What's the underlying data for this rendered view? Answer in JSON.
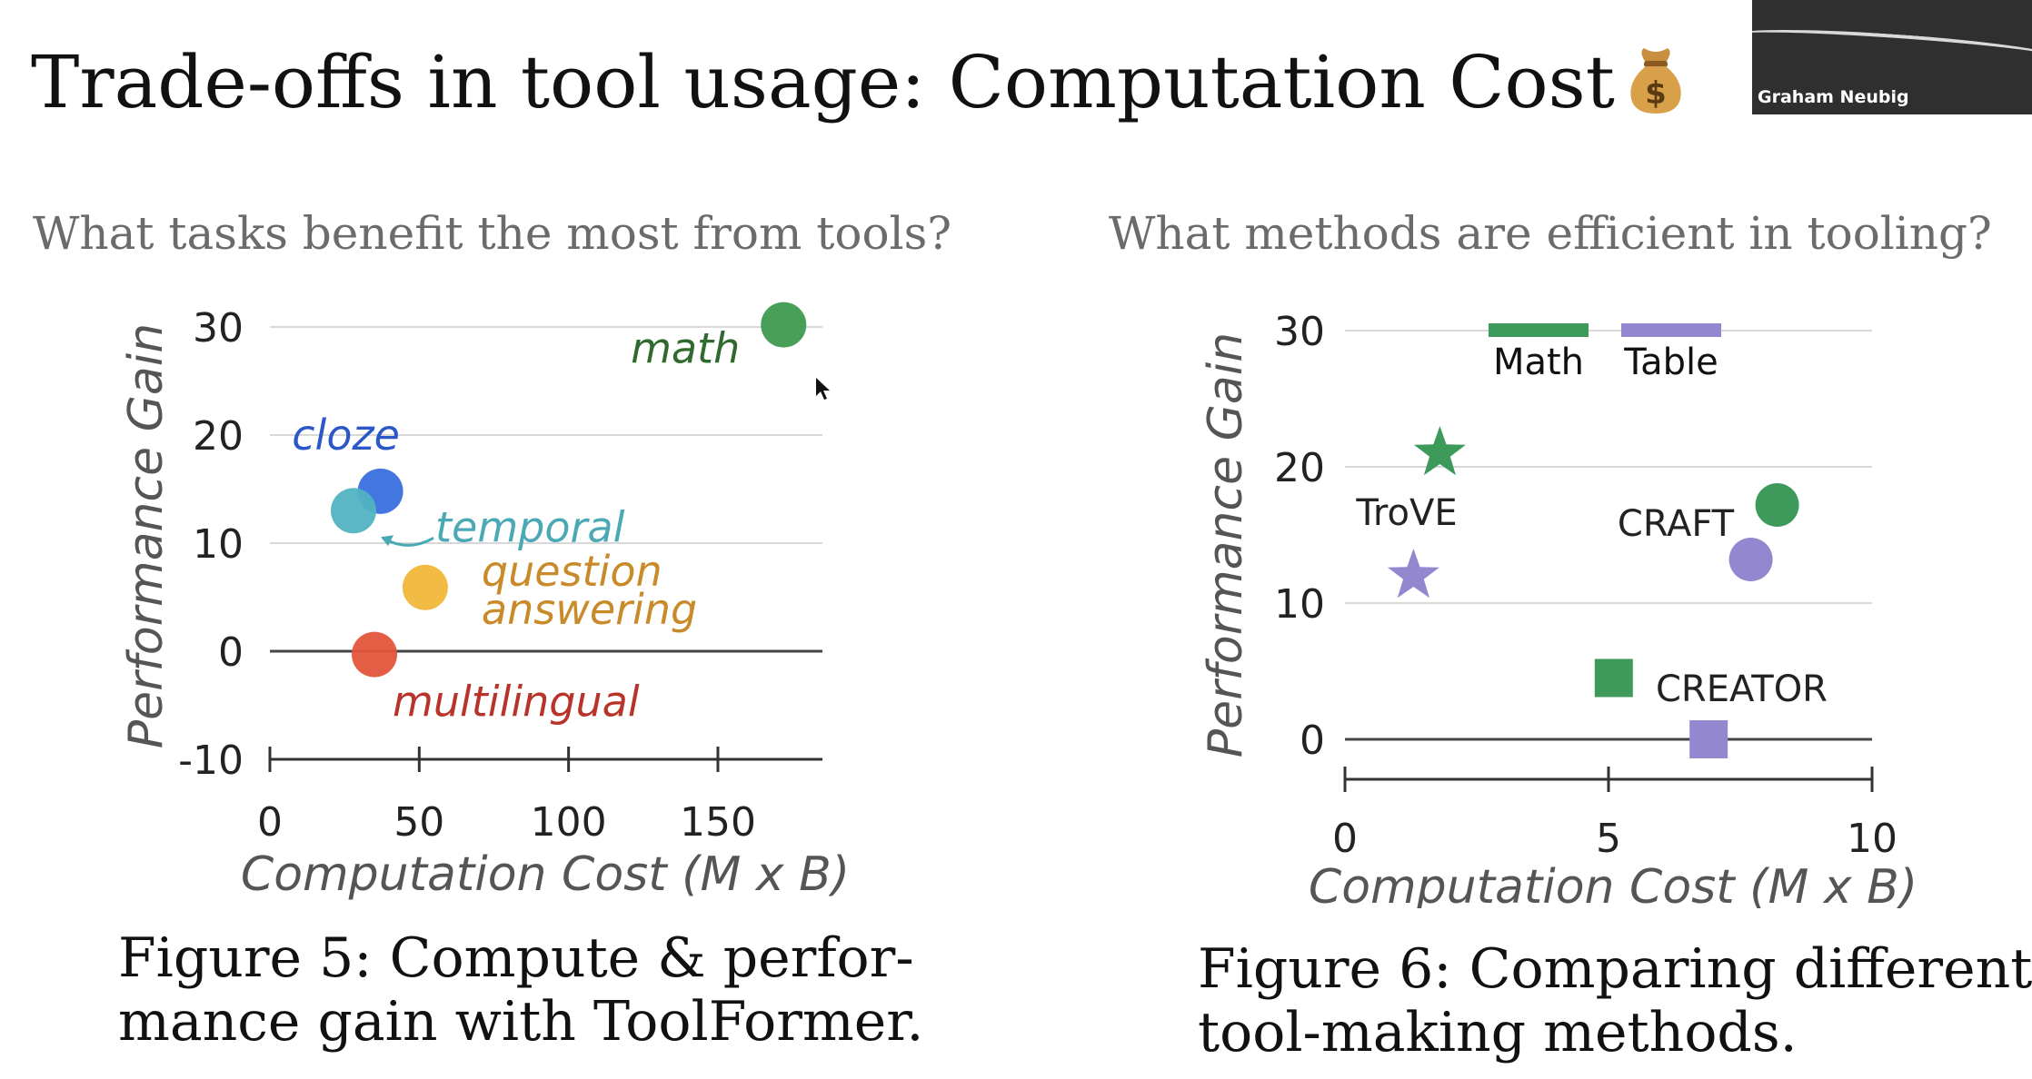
{
  "slide": {
    "title": "Trade-offs in tool usage: Computation Cost",
    "title_icon": "money-bag-icon",
    "video": {
      "speaker_name": "Graham Neubig"
    },
    "left_question": "What tasks benefit the most from tools?",
    "right_question": "What methods are efficient in tooling?",
    "left_caption_line1": "Figure 5: Compute & perfor-",
    "left_caption_line2": "mance gain with ToolFormer.",
    "right_caption_line1": "Figure 6: Comparing different",
    "right_caption_line2": "tool-making methods."
  },
  "chart_data": [
    {
      "type": "scatter",
      "xlabel": "Computation Cost (M x B)",
      "ylabel": "Performance Gain",
      "xlim": [
        0,
        185
      ],
      "ylim": [
        -10,
        30
      ],
      "xticks": [
        0,
        50,
        100,
        150
      ],
      "yticks": [
        30,
        20,
        10,
        0,
        -10
      ],
      "grid": true,
      "points": [
        {
          "label": "math",
          "x": 172,
          "y": 30.2,
          "color": "#3e9a4e",
          "label_color": "#2f6a2f"
        },
        {
          "label": "cloze",
          "x": 37,
          "y": 14.8,
          "color": "#3a6fde",
          "label_color": "#2c57c9"
        },
        {
          "label": "temporal",
          "x": 28,
          "y": 13,
          "color": "#52b2c2",
          "label_color": "#4aa9b5"
        },
        {
          "label": "question answering",
          "label_lines": [
            "question",
            "answering"
          ],
          "x": 52,
          "y": 5.9,
          "color": "#f0b73a",
          "label_color": "#c98a2a"
        },
        {
          "label": "multilingual",
          "x": 35,
          "y": -0.3,
          "color": "#e2553a",
          "label_color": "#b8332a"
        }
      ]
    },
    {
      "type": "scatter",
      "xlabel": "Computation Cost (M x B)",
      "ylabel": "Performance Gain",
      "xlim": [
        0,
        10
      ],
      "ylim": [
        0,
        30
      ],
      "xticks": [
        0,
        5,
        10
      ],
      "yticks": [
        30,
        20,
        10,
        0
      ],
      "grid": true,
      "legend_position": "top",
      "series": [
        {
          "name": "Math",
          "color": "#3e9a5a"
        },
        {
          "name": "Table",
          "color": "#9387cf"
        }
      ],
      "methods": [
        {
          "name": "TroVE",
          "marker": "star",
          "Math": {
            "x": 1.8,
            "y": 21
          },
          "Table": {
            "x": 1.3,
            "y": 12
          }
        },
        {
          "name": "CRAFT",
          "marker": "circle",
          "Math": {
            "x": 8.2,
            "y": 17.2
          },
          "Table": {
            "x": 7.7,
            "y": 13.2
          }
        },
        {
          "name": "CREATOR",
          "marker": "square",
          "Math": {
            "x": 5.1,
            "y": 4.5
          },
          "Table": {
            "x": 6.9,
            "y": 0
          }
        }
      ]
    }
  ]
}
